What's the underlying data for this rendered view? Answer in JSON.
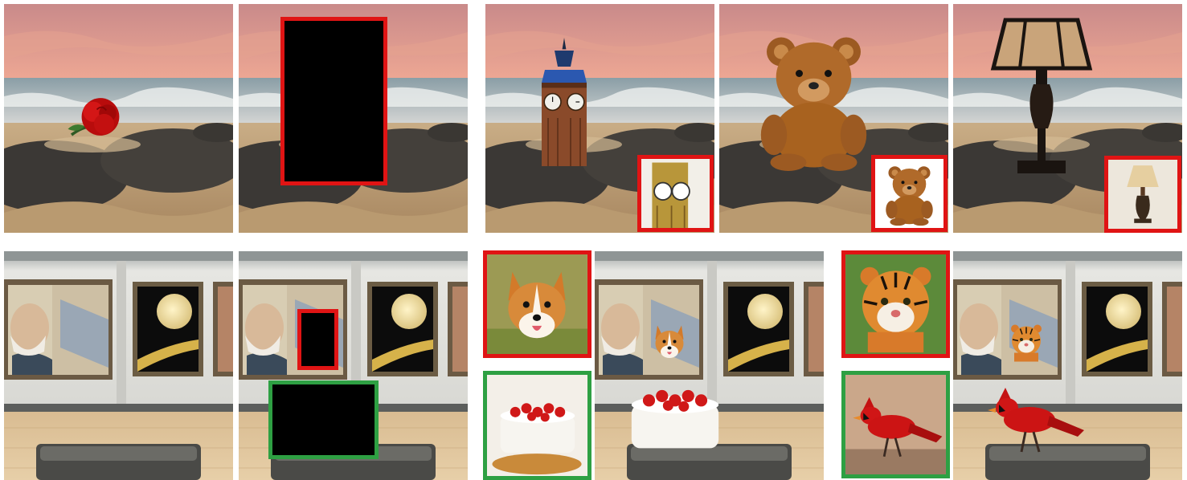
{
  "figure": {
    "rows": [
      {
        "row_id": "beach",
        "panels": [
          {
            "role": "input",
            "subject": "red-rose"
          },
          {
            "role": "masked-input",
            "mask_color": "#e01414"
          },
          {
            "role": "result",
            "subject": "clock-tower",
            "reference": "clock-tower-reference"
          },
          {
            "role": "result",
            "subject": "teddy-bear",
            "reference": "teddy-bear-reference"
          },
          {
            "role": "result",
            "subject": "table-lamp",
            "reference": "table-lamp-reference"
          }
        ]
      },
      {
        "row_id": "gallery",
        "panels": [
          {
            "role": "input",
            "subject": "empty-bench"
          },
          {
            "role": "masked-input",
            "masks": [
              "#e01414",
              "#2ea043"
            ]
          },
          {
            "role": "result",
            "subjects": [
              "corgi",
              "strawberry-cake"
            ],
            "references": [
              "corgi-reference",
              "cake-reference"
            ]
          },
          {
            "role": "result",
            "subjects": [
              "tiger",
              "cardinal"
            ],
            "references": [
              "tiger-reference",
              "cardinal-reference"
            ]
          }
        ]
      }
    ],
    "colors": {
      "red_mask": "#e01414",
      "green_mask": "#2ea043",
      "background": "#ffffff"
    }
  }
}
